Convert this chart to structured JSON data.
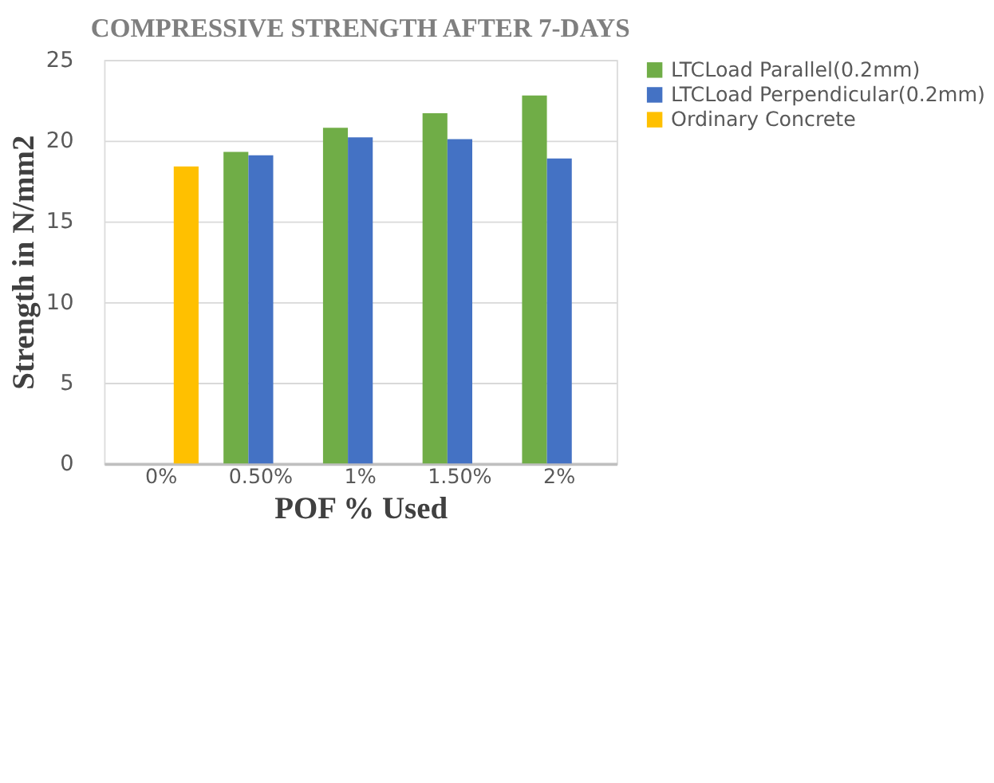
{
  "chart_data": {
    "type": "bar",
    "title": "COMPRESSIVE STRENGTH AFTER 7-DAYS",
    "xlabel": "POF % Used",
    "ylabel": "Strength in N/mm2",
    "categories": [
      "0%",
      "0.50%",
      "1%",
      "1.50%",
      "2%"
    ],
    "series": [
      {
        "name": "LTCLoad Parallel(0.2mm)",
        "color": "#70ad47",
        "values": [
          null,
          19.3,
          20.8,
          21.7,
          22.8
        ]
      },
      {
        "name": "LTCLoad Perpendicular(0.2mm)",
        "color": "#4472c4",
        "values": [
          null,
          19.1,
          20.2,
          20.1,
          18.9
        ]
      },
      {
        "name": "Ordinary Concrete",
        "color": "#ffc000",
        "values": [
          18.4,
          null,
          null,
          null,
          null
        ]
      }
    ],
    "ylim": [
      0,
      25
    ],
    "yticks": [
      0,
      5,
      10,
      15,
      20,
      25
    ],
    "grid": "y",
    "legend": "right"
  }
}
